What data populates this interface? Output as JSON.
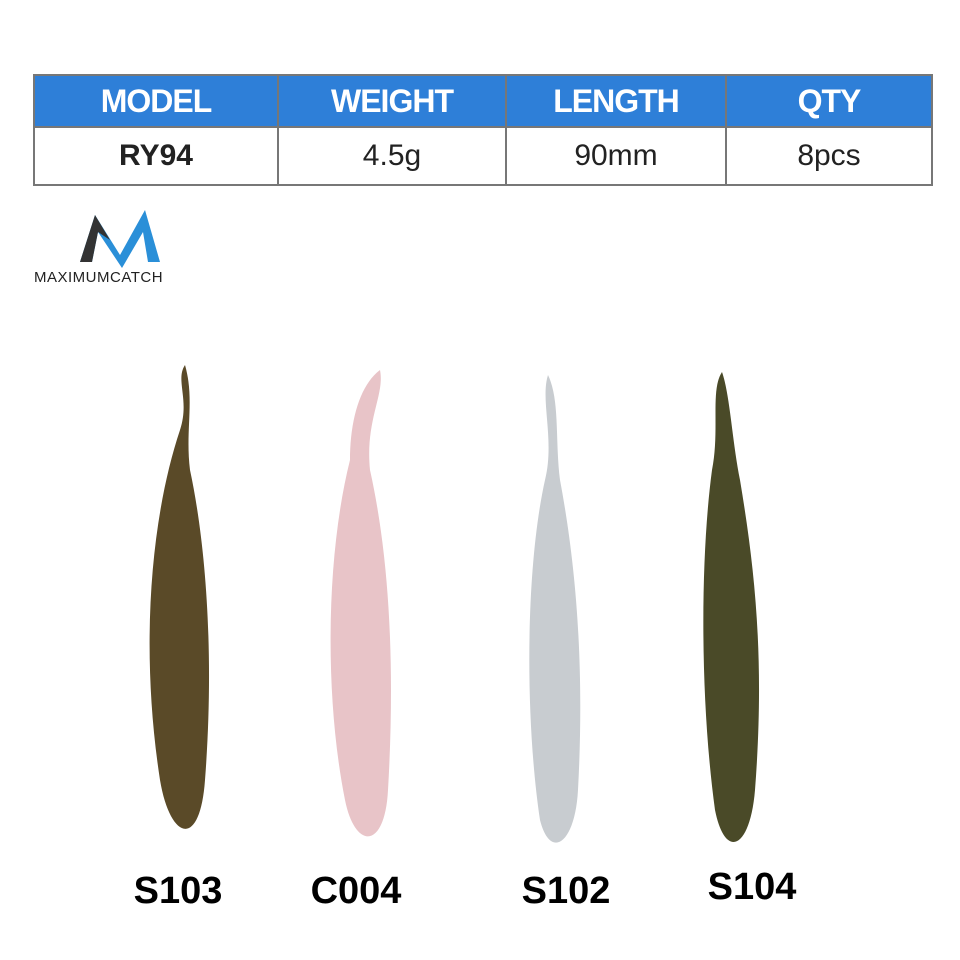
{
  "table": {
    "header": [
      "MODEL",
      "WEIGHT",
      "LENGTH",
      "QTY"
    ],
    "rows": [
      [
        "RY94",
        "4.5g",
        "90mm",
        "8pcs"
      ]
    ]
  },
  "brand": "MAXIMUMCATCH",
  "lures": [
    {
      "label": "S103"
    },
    {
      "label": "C004"
    },
    {
      "label": "S102"
    },
    {
      "label": "S104"
    }
  ]
}
